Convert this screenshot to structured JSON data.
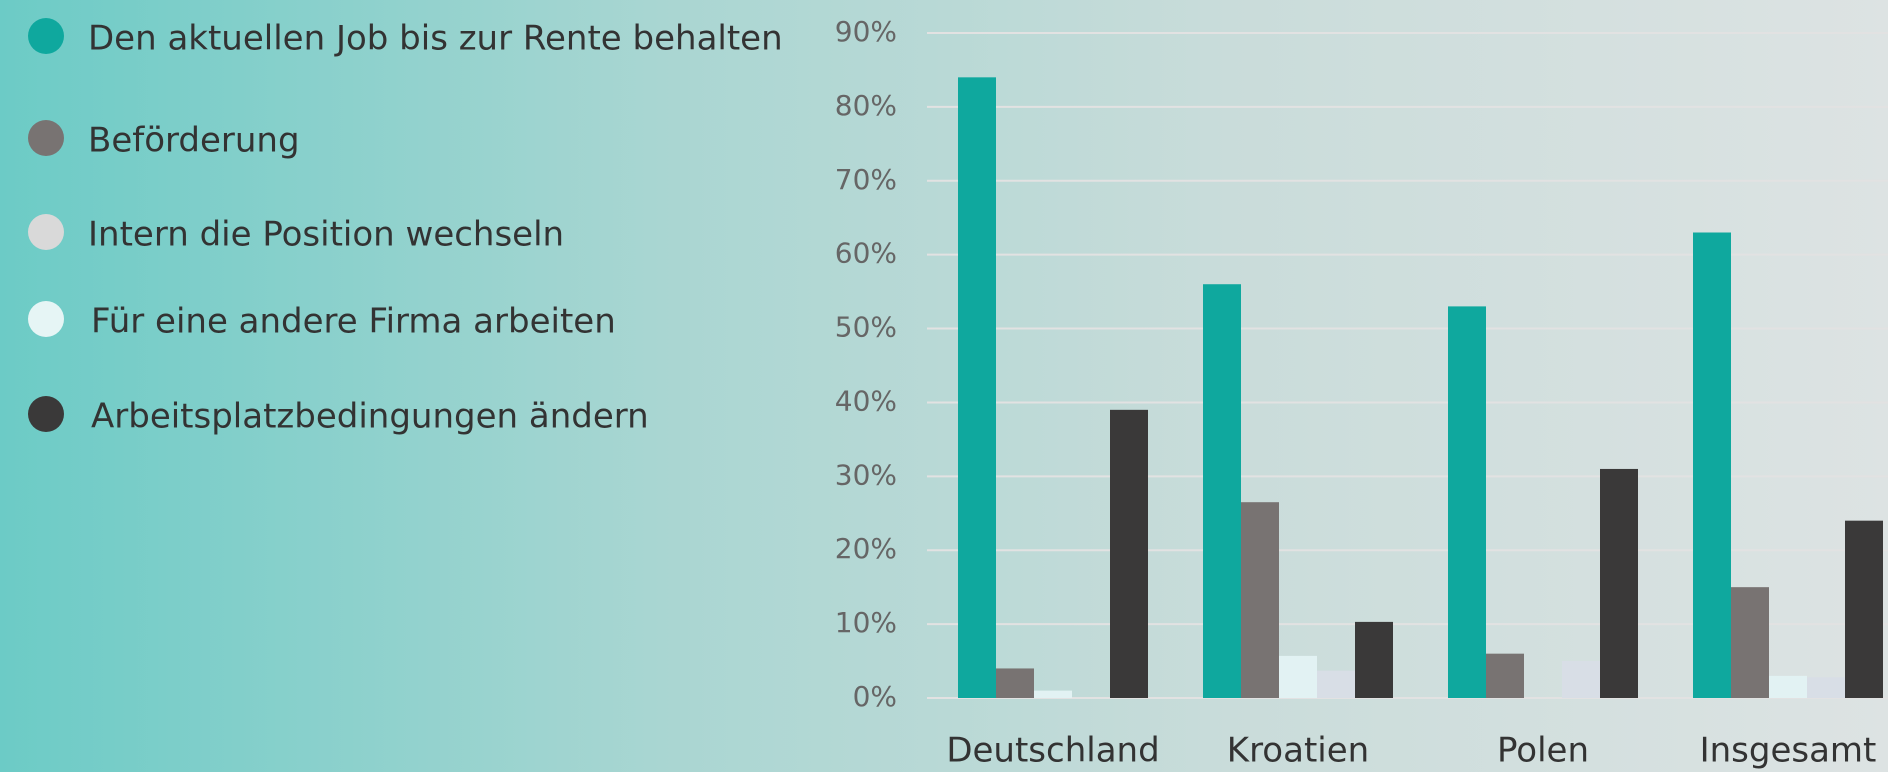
{
  "chart_data": {
    "type": "bar",
    "categories": [
      "Deutschland",
      "Kroatien",
      "Polen",
      "Insgesamt"
    ],
    "series": [
      {
        "name": "Den aktuellen Job bis zur Rente behalten",
        "color": "#0fa89e",
        "values": [
          84,
          56,
          53,
          63
        ]
      },
      {
        "name": "Beförderung",
        "color": "#787372",
        "values": [
          4,
          26.5,
          6,
          15
        ]
      },
      {
        "name": "Intern die Position wechseln",
        "color": "#e2f2f3",
        "values": [
          1,
          5.7,
          0,
          3
        ]
      },
      {
        "name": "Für eine andere Firma arbeiten",
        "color": "#d8dee6",
        "values": [
          0,
          3.7,
          5,
          2.8
        ]
      },
      {
        "name": "Arbeitsplatzbedingungen ändern",
        "color": "#3a3939",
        "values": [
          39,
          10.3,
          31,
          24
        ]
      }
    ],
    "legend_colors": [
      "#0fa89e",
      "#787372",
      "#d9d9d9",
      "#e6f5f5",
      "#3a3939"
    ],
    "ylim": [
      0,
      90
    ],
    "yticks": [
      {
        "value": 0,
        "label": "0%"
      },
      {
        "value": 10,
        "label": "10%"
      },
      {
        "value": 20,
        "label": "20%"
      },
      {
        "value": 30,
        "label": "30%"
      },
      {
        "value": 40,
        "label": "40%"
      },
      {
        "value": 50,
        "label": "50%"
      },
      {
        "value": 60,
        "label": "60%"
      },
      {
        "value": 70,
        "label": "70%"
      },
      {
        "value": 80,
        "label": "80%"
      },
      {
        "value": 90,
        "label": "90%"
      }
    ],
    "grid": true,
    "legend": "left"
  }
}
